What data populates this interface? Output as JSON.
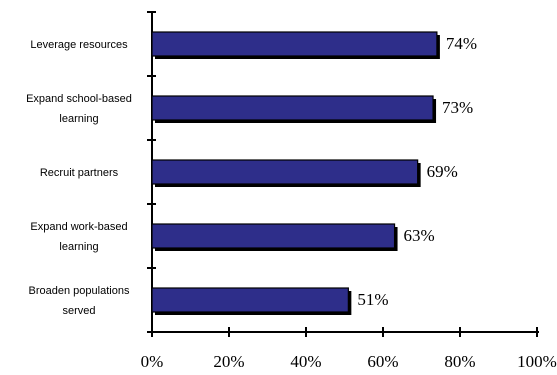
{
  "chart_data": {
    "type": "bar",
    "orientation": "horizontal",
    "categories": [
      [
        "Leverage resources"
      ],
      [
        "Expand school-based",
        "learning"
      ],
      [
        "Recruit partners"
      ],
      [
        "Expand work-based",
        "learning"
      ],
      [
        "Broaden populations",
        "served"
      ]
    ],
    "values": [
      74,
      73,
      69,
      63,
      51
    ],
    "value_labels": [
      "74%",
      "73%",
      "69%",
      "63%",
      "51%"
    ],
    "x_ticks": [
      "0%",
      "20%",
      "40%",
      "60%",
      "80%",
      "100%"
    ],
    "xlim": [
      0,
      100
    ],
    "title": "",
    "xlabel": "",
    "ylabel": "",
    "grid": false,
    "bar_color": "#2e2e8a"
  }
}
